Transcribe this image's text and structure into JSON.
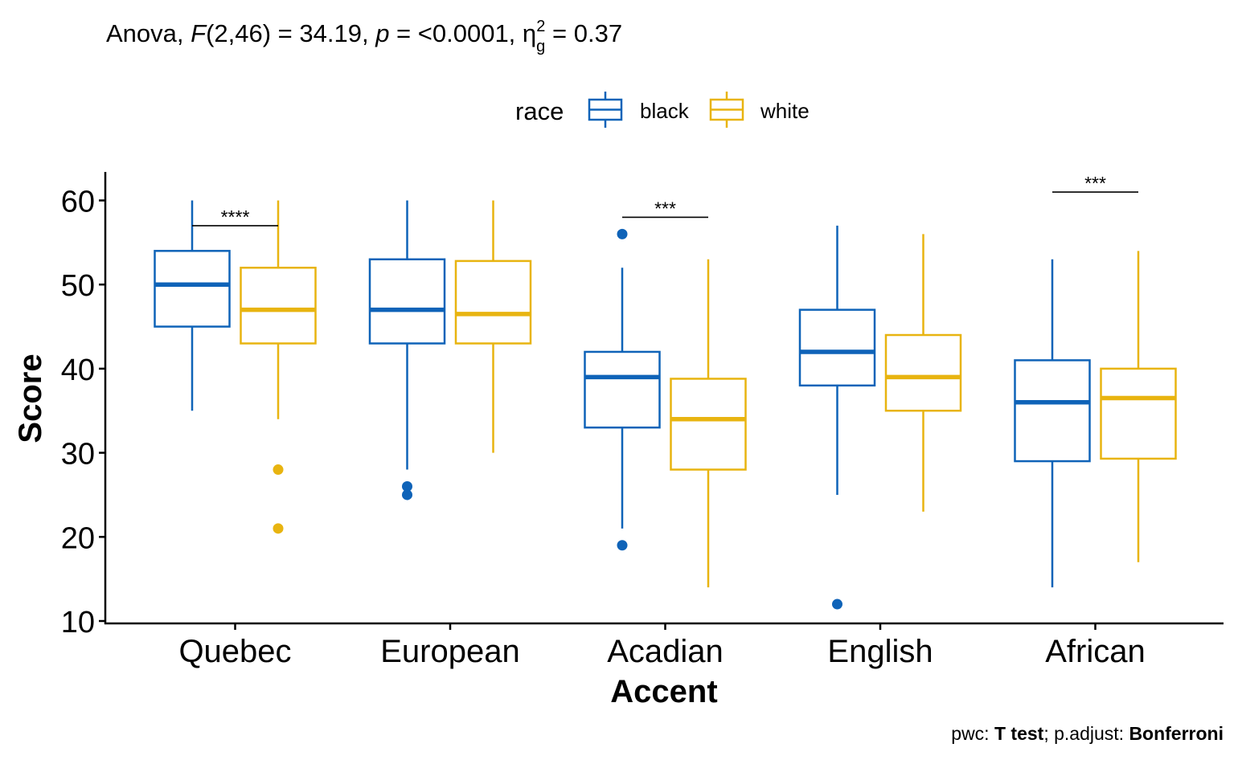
{
  "subtitle": {
    "prefix": "Anova, ",
    "f_symbol": "F",
    "f_value": "(2,46) = 34.19, ",
    "p_symbol": "p",
    "p_value": " = <0.0001, ",
    "eta": "η",
    "eta_sub": "g",
    "eta_sup": "2",
    "eta_value": " = 0.37"
  },
  "caption": {
    "prefix": "pwc: ",
    "test": "T test",
    "mid": "; p.adjust: ",
    "method": "Bonferroni"
  },
  "colors": {
    "black": "#0f63b8",
    "white": "#e8b410",
    "axis": "#000000"
  },
  "chart_data": {
    "type": "boxplot",
    "xlabel": "Accent",
    "ylabel": "Score",
    "ylim": [
      10,
      63
    ],
    "yticks": [
      10,
      20,
      30,
      40,
      50,
      60
    ],
    "grid": false,
    "legend": {
      "title": "race",
      "position": "top",
      "entries": [
        "black",
        "white"
      ]
    },
    "categories": [
      "Quebec",
      "European",
      "Acadian",
      "English",
      "African"
    ],
    "series": [
      {
        "name": "black",
        "color": "#0f63b8",
        "boxes": [
          {
            "category": "Quebec",
            "min": 35,
            "q1": 45,
            "median": 50,
            "q3": 54,
            "max": 60,
            "outliers": []
          },
          {
            "category": "European",
            "min": 28,
            "q1": 43,
            "median": 47,
            "q3": 53,
            "max": 60,
            "outliers": [
              26,
              25
            ]
          },
          {
            "category": "Acadian",
            "min": 21,
            "q1": 33,
            "median": 39,
            "q3": 42,
            "max": 52,
            "outliers": [
              56,
              19
            ]
          },
          {
            "category": "English",
            "min": 25,
            "q1": 38,
            "median": 42,
            "q3": 47,
            "max": 57,
            "outliers": [
              12
            ]
          },
          {
            "category": "African",
            "min": 14,
            "q1": 29,
            "median": 36,
            "q3": 41,
            "max": 53,
            "outliers": []
          }
        ]
      },
      {
        "name": "white",
        "color": "#e8b410",
        "boxes": [
          {
            "category": "Quebec",
            "min": 34,
            "q1": 43,
            "median": 47,
            "q3": 52,
            "max": 60,
            "outliers": [
              28,
              21
            ]
          },
          {
            "category": "European",
            "min": 30,
            "q1": 43,
            "median": 46.5,
            "q3": 52.8,
            "max": 60,
            "outliers": []
          },
          {
            "category": "Acadian",
            "min": 14,
            "q1": 28,
            "median": 34,
            "q3": 38.8,
            "max": 53,
            "outliers": []
          },
          {
            "category": "English",
            "min": 23,
            "q1": 35,
            "median": 39,
            "q3": 44,
            "max": 56,
            "outliers": []
          },
          {
            "category": "African",
            "min": 17,
            "q1": 29.3,
            "median": 36.5,
            "q3": 40,
            "max": 54,
            "outliers": []
          }
        ]
      }
    ],
    "significance": [
      {
        "category": "Quebec",
        "label": "****",
        "y": 57
      },
      {
        "category": "Acadian",
        "label": "***",
        "y": 58
      },
      {
        "category": "African",
        "label": "***",
        "y": 61
      }
    ]
  }
}
